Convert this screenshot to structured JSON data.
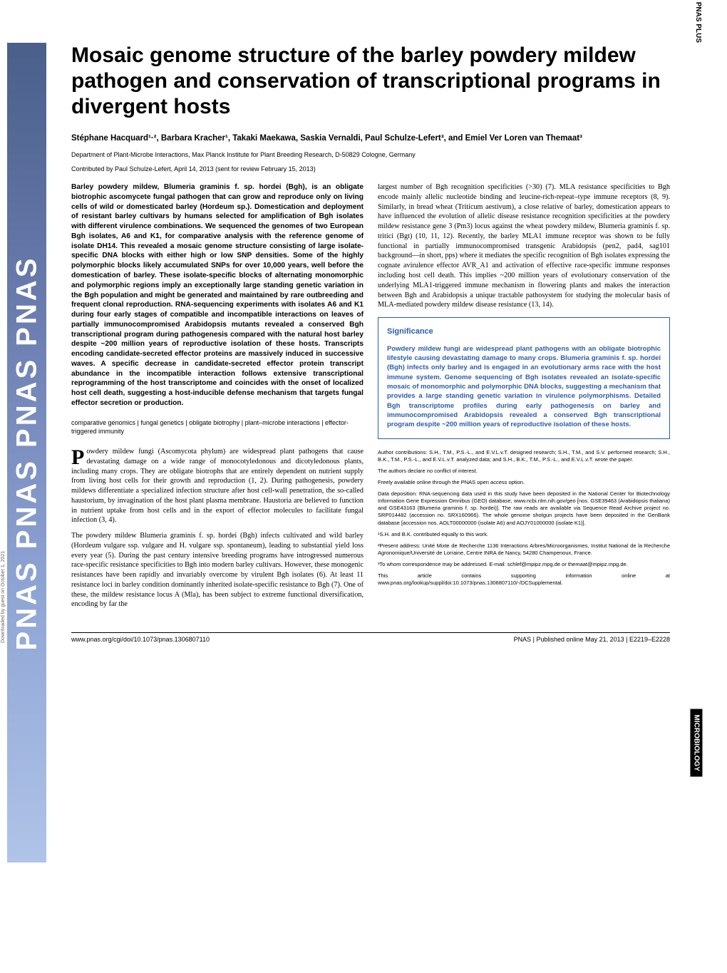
{
  "sidebar": {
    "text": "PNAS PNAS PNAS PNAS"
  },
  "labels": {
    "pnas_plus": "PNAS PLUS",
    "microbiology": "MICROBIOLOGY",
    "download_note": "Downloaded by guest on October 1, 2021"
  },
  "title": "Mosaic genome structure of the barley powdery mildew pathogen and conservation of transcriptional programs in divergent hosts",
  "authors": "Stéphane Hacquard¹·², Barbara Kracher¹, Takaki Maekawa, Saskia Vernaldi, Paul Schulze-Lefert³, and Emiel Ver Loren van Themaat³",
  "affiliation": "Department of Plant-Microbe Interactions, Max Planck Institute for Plant Breeding Research, D-50829 Cologne, Germany",
  "contributed": "Contributed by Paul Schulze-Lefert, April 14, 2013 (sent for review February 15, 2013)",
  "abstract": "Barley powdery mildew, Blumeria graminis f. sp. hordei (Bgh), is an obligate biotrophic ascomycete fungal pathogen that can grow and reproduce only on living cells of wild or domesticated barley (Hordeum sp.). Domestication and deployment of resistant barley cultivars by humans selected for amplification of Bgh isolates with different virulence combinations. We sequenced the genomes of two European Bgh isolates, A6 and K1, for comparative analysis with the reference genome of isolate DH14. This revealed a mosaic genome structure consisting of large isolate-specific DNA blocks with either high or low SNP densities. Some of the highly polymorphic blocks likely accumulated SNPs for over 10,000 years, well before the domestication of barley. These isolate-specific blocks of alternating monomorphic and polymorphic regions imply an exceptionally large standing genetic variation in the Bgh population and might be generated and maintained by rare outbreeding and frequent clonal reproduction. RNA-sequencing experiments with isolates A6 and K1 during four early stages of compatible and incompatible interactions on leaves of partially immunocompromised Arabidopsis mutants revealed a conserved Bgh transcriptional program during pathogenesis compared with the natural host barley despite ~200 million years of reproductive isolation of these hosts. Transcripts encoding candidate-secreted effector proteins are massively induced in successive waves. A specific decrease in candidate-secreted effector protein transcript abundance in the incompatible interaction follows extensive transcriptional reprogramming of the host transcriptome and coincides with the onset of localized host cell death, suggesting a host-inducible defense mechanism that targets fungal effector secretion or production.",
  "keywords": "comparative genomics | fungal genetics | obligate biotrophy | plant–microbe interactions | effector-triggered immunity",
  "body1_para1": "owdery mildew fungi (Ascomycota phylum) are widespread plant pathogens that cause devastating damage on a wide range of monocotyledonous and dicotyledonous plants, including many crops. They are obligate biotrophs that are entirely dependent on nutrient supply from living host cells for their growth and reproduction (1, 2). During pathogenesis, powdery mildews differentiate a specialized infection structure after host cell-wall penetration, the so-called haustorium, by invagination of the host plant plasma membrane. Haustoria are believed to function in nutrient uptake from host cells and in the export of effector molecules to facilitate fungal infection (3, 4).",
  "body1_para2": "The powdery mildew Blumeria graminis f. sp. hordei (Bgh) infects cultivated and wild barley (Hordeum vulgare ssp. vulgare and H. vulgare ssp. spontaneum), leading to substantial yield loss every year (5). During the past century intensive breeding programs have introgressed numerous race-specific resistance specificities to Bgh into modern barley cultivars. However, these monogenic resistances have been rapidly and invariably overcome by virulent Bgh isolates (6). At least 11 resistance loci in barley condition dominantly inherited isolate-specific resistance to Bgh (7). One of these, the mildew resistance locus A (Mla), has been subject to extreme functional diversification, encoding by far the",
  "body2_para1": "largest number of Bgh recognition specificities (>30) (7). MLA resistance specificities to Bgh encode mainly allelic nucleotide binding and leucine-rich-repeat–type immune receptors (8, 9). Similarly, in bread wheat (Triticum aestivum), a close relative of barley, domestication appears to have influenced the evolution of allelic disease resistance recognition specificities at the powdery mildew resistance gene 3 (Pm3) locus against the wheat powdery mildew, Blumeria graminis f. sp. tritici (Bgt) (10, 11, 12). Recently, the barley MLA1 immune receptor was shown to be fully functional in partially immunocompromised transgenic Arabidopsis (pen2, pad4, sag101 background—in short, pps) where it mediates the specific recognition of Bgh isolates expressing the cognate avirulence effector AVR_A1 and activation of effective race-specific immune responses including host cell death. This implies ~200 million years of evolutionary conservation of the underlying MLA1-triggered immune mechanism in flowering plants and makes the interaction between Bgh and Arabidopsis a unique tractable pathosystem for studying the molecular basis of MLA-mediated powdery mildew disease resistance (13, 14).",
  "significance": {
    "title": "Significance",
    "text": "Powdery mildew fungi are widespread plant pathogens with an obligate biotrophic lifestyle causing devastating damage to many crops. Blumeria graminis f. sp. hordei (Bgh) infects only barley and is engaged in an evolutionary arms race with the host immune system. Genome sequencing of Bgh isolates revealed an isolate-specific mosaic of monomorphic and polymorphic DNA blocks, suggesting a mechanism that provides a large standing genetic variation in virulence polymorphisms. Detailed Bgh transcriptome profiles during early pathogenesis on barley and immunocompromised Arabidopsis revealed a conserved Bgh transcriptional program despite ~200 million years of reproductive isolation of these hosts."
  },
  "meta": {
    "author_contributions": "Author contributions: S.H., T.M., P.S.-L., and E.V.L.v.T. designed research; S.H., T.M., and S.V. performed research; S.H., B.K., T.M., P.S.-L., and E.V.L.v.T. analyzed data; and S.H., B.K., T.M., P.S.-L., and E.V.L.v.T. wrote the paper.",
    "conflict": "The authors declare no conflict of interest.",
    "access": "Freely available online through the PNAS open access option.",
    "data_deposition": "Data deposition: RNA-sequencing data used in this study have been deposited in the National Center for Biotechnology Information Gene Expression Omnibus (GEO) database, www.ncbi.nlm.nih.gov/geo [nos. GSE39463 (Arabidopsis thaliana) and GSE43163 (Blumeria graminis f. sp. hordei)]. The raw reads are available via Sequence Read Archive project no. SRP014482 (accession no. SRX160966). The whole genome shotgun projects have been deposited in the GenBank database [accession nos. AOLT00000000 (isolate A6) and AOJY01000000 (isolate K1)].",
    "equal": "¹S.H. and B.K. contributed equally to this work.",
    "present_address": "²Present address: Unité Mixte de Recherche 1136 Interactions Arbres/Microorganismes, Institut National de la Recherche Agronomique/Université de Lorraine, Centre INRA de Nancy, 54280 Champenoux, France.",
    "correspondence": "³To whom correspondence may be addressed. E-mail: schlef@mpipz.mpg.de or themaat@mpipz.mpg.de.",
    "supplemental": "This article contains supporting information online at www.pnas.org/lookup/suppl/doi:10.1073/pnas.1306807110/-/DCSupplemental."
  },
  "footer": {
    "left": "www.pnas.org/cgi/doi/10.1073/pnas.1306807110",
    "right": "PNAS | Published online May 21, 2013 | E2219–E2228"
  },
  "styles": {
    "title_fontsize": 30,
    "body_fontsize": 10.2,
    "meta_fontsize": 7.5,
    "link_color": "#2a5caa",
    "banner_gradient": [
      "#4a5f8a",
      "#6b7db0",
      "#8ea4d4",
      "#b0c4e8"
    ],
    "text_color": "#000000",
    "background_color": "#ffffff"
  }
}
